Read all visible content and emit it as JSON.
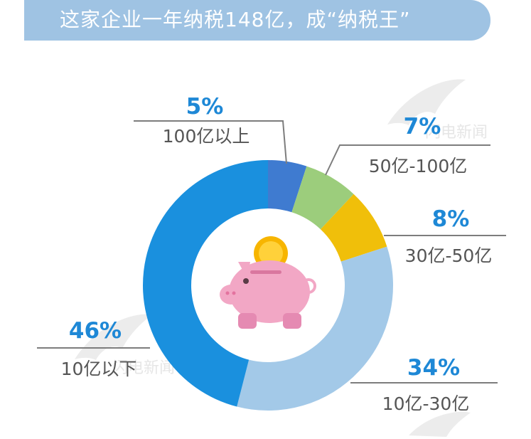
{
  "title": "这家企业一年纳税148亿，成“纳税王”",
  "watermark": "闪电新闻",
  "chart_data": {
    "type": "donut",
    "title": "这家企业一年纳税148亿，成“纳税王”",
    "slices": [
      {
        "label": "100亿以上",
        "value": 5,
        "value_label": "5%",
        "color": "#3f7bd0"
      },
      {
        "label": "50亿-100亿",
        "value": 7,
        "value_label": "7%",
        "color": "#9ccd7c"
      },
      {
        "label": "30亿-50亿",
        "value": 8,
        "value_label": "8%",
        "color": "#f0bf0a"
      },
      {
        "label": "10亿-30亿",
        "value": 34,
        "value_label": "34%",
        "color": "#a3c9e8"
      },
      {
        "label": "10亿以下",
        "value": 46,
        "value_label": "46%",
        "color": "#1a90de"
      }
    ],
    "center_icon": "piggy-bank-icon"
  }
}
